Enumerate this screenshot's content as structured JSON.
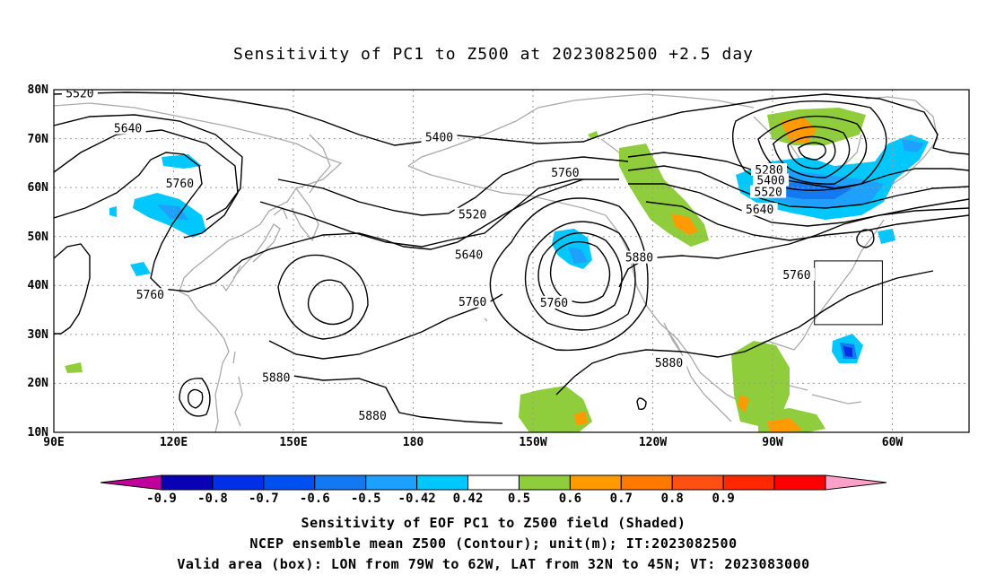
{
  "title": "Sensitivity of PC1 to Z500 at 2023082500 +2.5 day",
  "lat_labels": [
    "80N",
    "70N",
    "60N",
    "50N",
    "40N",
    "30N",
    "20N",
    "10N"
  ],
  "lon_labels": [
    "90E",
    "120E",
    "150E",
    "180",
    "150W",
    "120W",
    "90W",
    "60W"
  ],
  "contour_labels": [
    {
      "value": "5520",
      "lon": 97,
      "lat": 79.2
    },
    {
      "value": "5640",
      "lon": 110,
      "lat": 72
    },
    {
      "value": "5760",
      "lon": 124,
      "lat": 60.8
    },
    {
      "value": "5760",
      "lon": 116,
      "lat": 38
    },
    {
      "value": "5400",
      "lon": 194,
      "lat": 70.2
    },
    {
      "value": "5520",
      "lon": 203,
      "lat": 54.4
    },
    {
      "value": "5640",
      "lon": 202,
      "lat": 46.2
    },
    {
      "value": "5760",
      "lon": 228,
      "lat": 63
    },
    {
      "value": "5760",
      "lon": 203,
      "lat": 36.6
    },
    {
      "value": "5760",
      "lon": 225,
      "lat": 36.4
    },
    {
      "value": "5880",
      "lon": 248,
      "lat": 45.6
    },
    {
      "value": "5880",
      "lon": 150,
      "lat": 21.1
    },
    {
      "value": "5880",
      "lon": 176,
      "lat": 13.3
    },
    {
      "value": "5880",
      "lon": 256,
      "lat": 24.1
    },
    {
      "value": "5280",
      "lon": 283,
      "lat": 63.5
    },
    {
      "value": "5400",
      "lon": 283.5,
      "lat": 61.4
    },
    {
      "value": "5520",
      "lon": 282.8,
      "lat": 59
    },
    {
      "value": "5640",
      "lon": 280.5,
      "lat": 55.4
    },
    {
      "value": "5760",
      "lon": 290.5,
      "lat": 42.1
    }
  ],
  "colorbar": {
    "colors": [
      "#c0009c",
      "#0a00b4",
      "#0030e6",
      "#0050f0",
      "#1478f0",
      "#1ea0ff",
      "#00c8ff",
      "#ffffff",
      "#90cd3c",
      "#ff9b00",
      "#ff7800",
      "#ff5014",
      "#ff2800",
      "#ff0000",
      "#ffa0c8"
    ],
    "labels": [
      "-0.9",
      "-0.8",
      "-0.7",
      "-0.6",
      "-0.5",
      "-0.42",
      "0.42",
      "0.5",
      "0.6",
      "0.7",
      "0.8",
      "0.9"
    ]
  },
  "valid_box": {
    "lon_min": -79,
    "lon_max": -62,
    "lat_min": 32,
    "lat_max": 45
  },
  "caption": {
    "line1": "Sensitivity of EOF PC1 to Z500 field (Shaded)",
    "line2": "NCEP ensemble mean Z500 (Contour); unit(m); IT:2023082500",
    "line3": "Valid area (box): LON from 79W to 62W, LAT from 32N to 45N; VT: 2023083000"
  }
}
